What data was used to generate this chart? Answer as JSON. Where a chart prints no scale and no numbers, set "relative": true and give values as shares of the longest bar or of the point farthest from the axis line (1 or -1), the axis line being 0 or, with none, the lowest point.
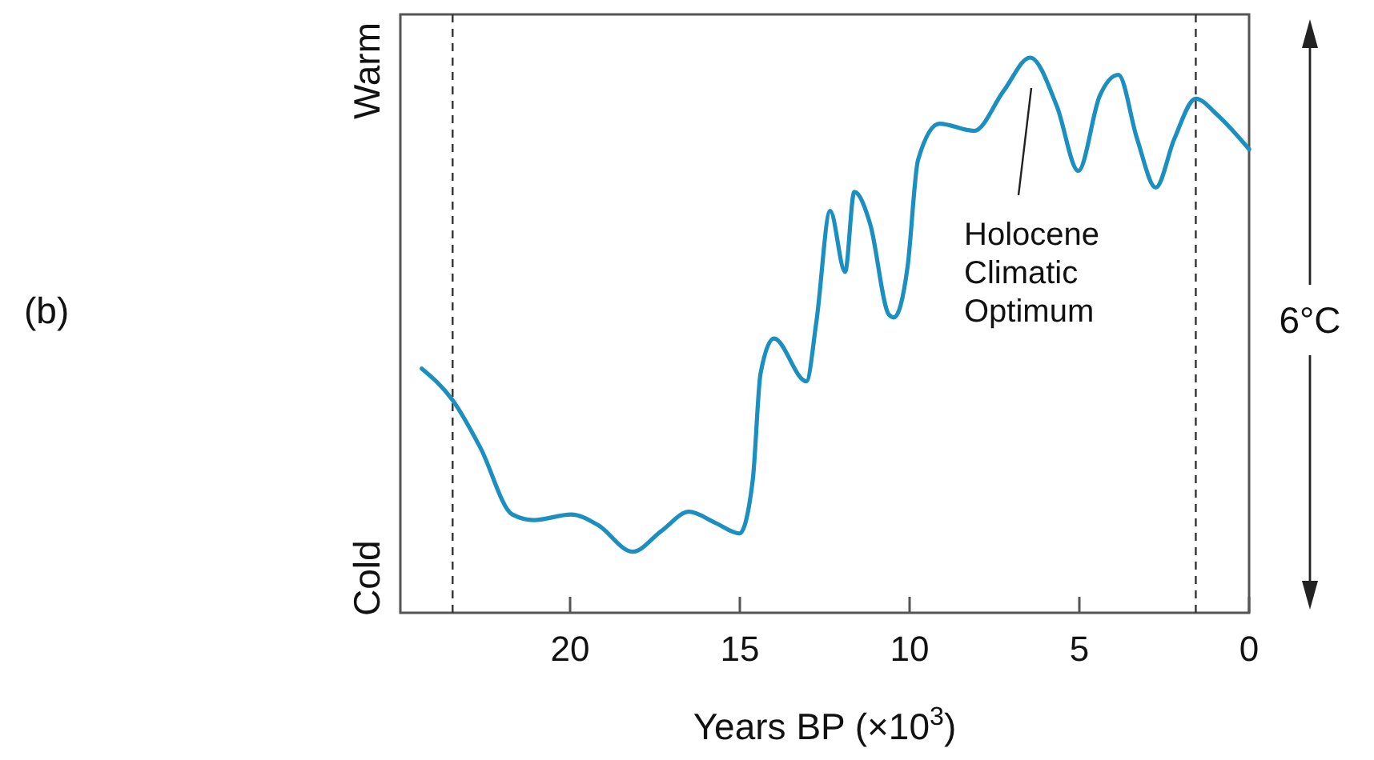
{
  "chart_data": {
    "type": "line",
    "relative": true,
    "xlabel": "Years BP (×10$^{3}$)",
    "xlim": [
      25,
      0
    ],
    "xticks": [
      20,
      15,
      10,
      5,
      0
    ],
    "x": [
      24.37,
      23.46,
      22.64,
      21.7,
      21.07,
      19.97,
      19.18,
      18.16,
      17.3,
      16.5,
      15.72,
      15.01,
      14.62,
      14.39,
      14.0,
      13.04,
      12.74,
      12.34,
      11.9,
      11.63,
      11.16,
      10.61,
      10.46,
      10.06,
      9.75,
      9.12,
      8.1,
      7.23,
      6.45,
      5.66,
      5.03,
      4.4,
      3.85,
      3.3,
      2.75,
      2.2,
      1.57,
      0.94,
      0
    ],
    "series": [
      {
        "color": "#1a8fc0",
        "values": [
          0.44,
          0.383,
          0.297,
          0.177,
          0.167,
          0.177,
          0.158,
          0.11,
          0.148,
          0.182,
          0.162,
          0.143,
          0.239,
          0.431,
          0.494,
          0.417,
          0.527,
          0.724,
          0.614,
          0.758,
          0.7,
          0.537,
          0.532,
          0.623,
          0.816,
          0.881,
          0.868,
          0.94,
          1.0,
          0.912,
          0.796,
          0.931,
          0.969,
          0.854,
          0.766,
          0.854,
          0.926,
          0.897,
          0.835
        ]
      }
    ],
    "line_style": "solid",
    "marker": "none",
    "ref_lines": [
      {
        "axis": "x",
        "value": 23.46,
        "line_style": "dashed",
        "color": "#333333"
      },
      {
        "axis": "x",
        "value": 1.57,
        "line_style": "dashed",
        "color": "#333333"
      }
    ],
    "annotations": [
      "Warm",
      "Cold",
      "(b)",
      "6°C",
      "Holocene\nClimatic\nOptimum"
    ]
  }
}
